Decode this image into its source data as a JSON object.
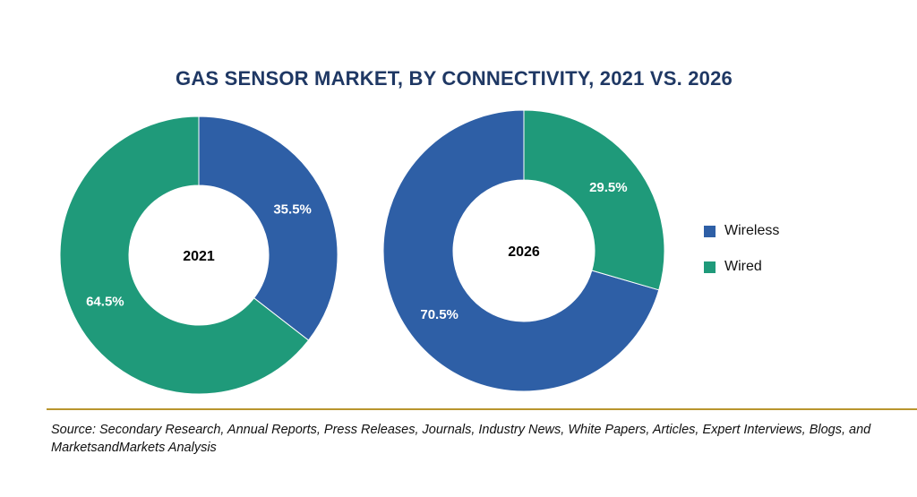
{
  "chart_data": {
    "type": "pie",
    "variant": "donut",
    "title": "GAS SENSOR MARKET, BY CONNECTIVITY, 2021 VS. 2026",
    "legend": [
      {
        "name": "Wireless",
        "color": "#2e5fa6"
      },
      {
        "name": "Wired",
        "color": "#1f9a7a"
      }
    ],
    "legend_placement": "right",
    "charts": [
      {
        "center_label": "2021",
        "slices": [
          {
            "name": "Wireless",
            "value": 35.5,
            "label": "35.5%"
          },
          {
            "name": "Wired",
            "value": 64.5,
            "label": "64.5%"
          }
        ]
      },
      {
        "center_label": "2026",
        "slices": [
          {
            "name": "Wireless",
            "value": 70.5,
            "label": "70.5%"
          },
          {
            "name": "Wired",
            "value": 29.5,
            "label": "29.5%"
          }
        ]
      }
    ]
  },
  "colors": {
    "wireless": "#2e5fa6",
    "wired": "#1f9a7a",
    "title": "#1f3864",
    "divider": "#b8952e"
  },
  "source_text": "Source: Secondary Research, Annual Reports, Press Releases, Journals, Industry News, White Papers, Articles, Expert Interviews, Blogs, and MarketsandMarkets Analysis"
}
